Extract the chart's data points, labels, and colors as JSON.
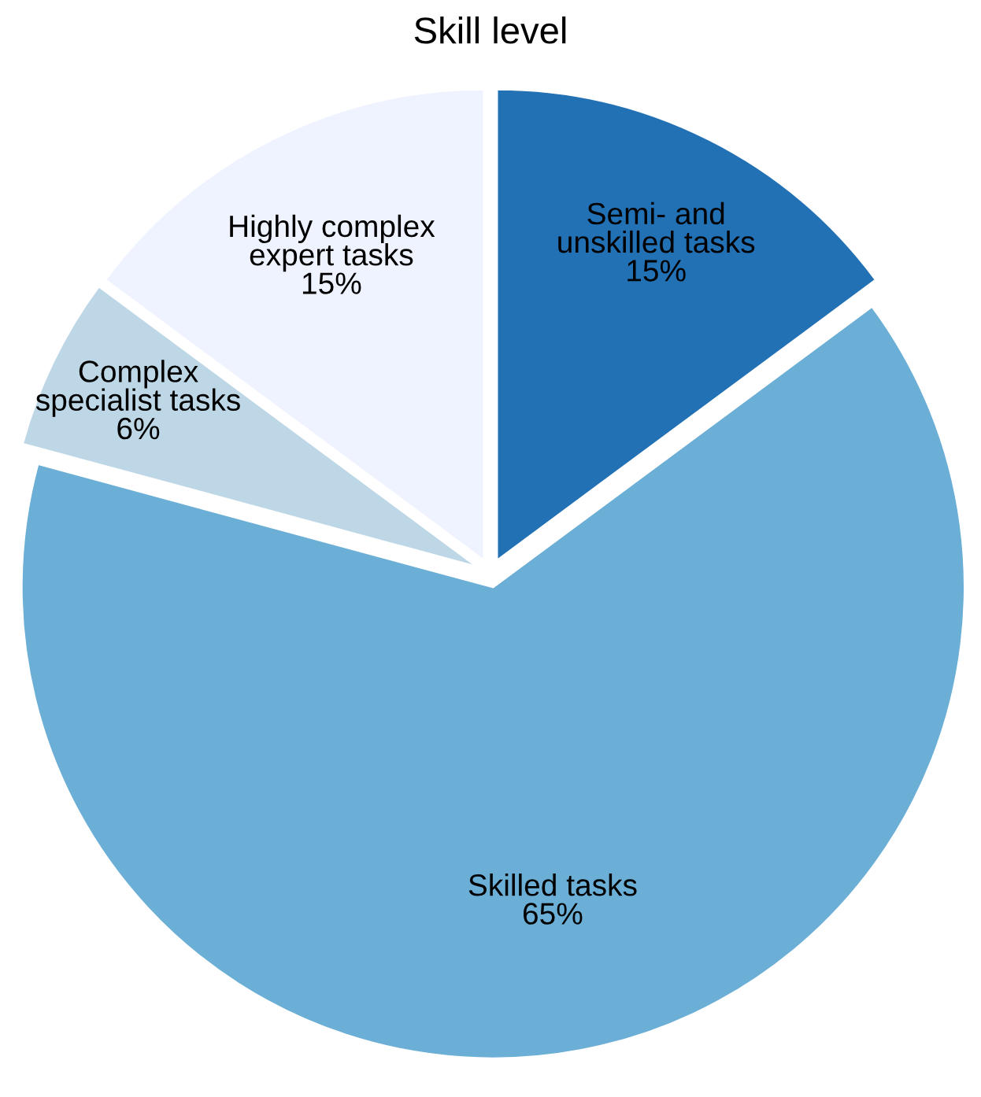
{
  "chart_data": {
    "type": "pie",
    "title": "Skill level",
    "categories": [
      "Semi- and\nunskilled tasks",
      "Skilled tasks",
      "Complex\nspecialist tasks",
      "Highly complex\nexpert tasks"
    ],
    "values": [
      15,
      65,
      6,
      15
    ],
    "value_labels": [
      "15%",
      "65%",
      "6%",
      "15%"
    ],
    "colors": [
      "#2271b5",
      "#6baed6",
      "#bdd7e7",
      "#eff3ff"
    ],
    "legend": false
  }
}
